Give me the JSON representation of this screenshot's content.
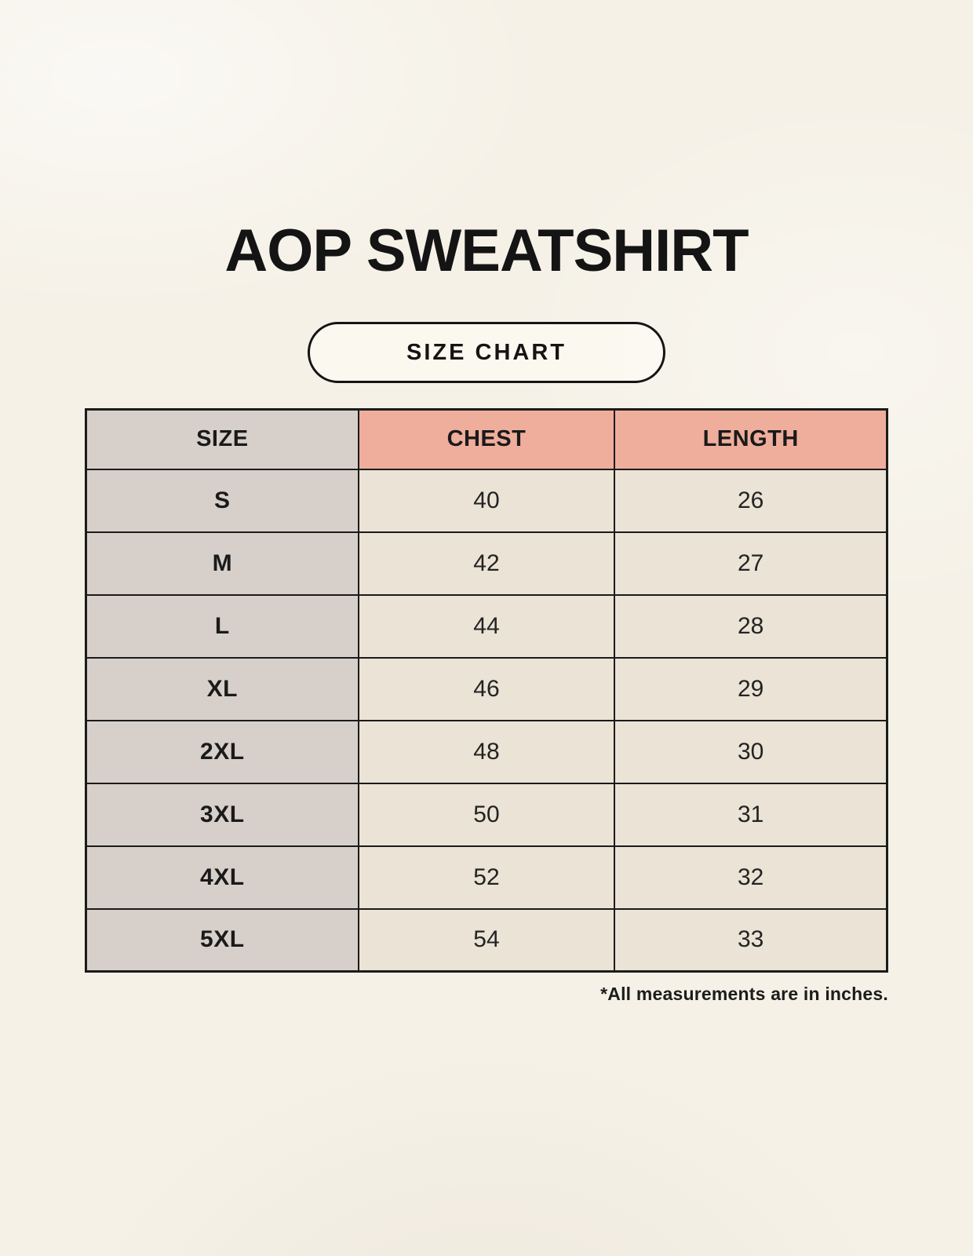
{
  "header": {
    "title": "AOP SWEATSHIRT",
    "badge_label": "SIZE CHART"
  },
  "chart_data": {
    "type": "table",
    "title": "AOP SWEATSHIRT",
    "subtitle": "SIZE CHART",
    "columns": [
      "SIZE",
      "CHEST",
      "LENGTH"
    ],
    "rows": [
      [
        "S",
        40,
        26
      ],
      [
        "M",
        42,
        27
      ],
      [
        "L",
        44,
        28
      ],
      [
        "XL",
        46,
        29
      ],
      [
        "2XL",
        48,
        30
      ],
      [
        "3XL",
        50,
        31
      ],
      [
        "4XL",
        52,
        32
      ],
      [
        "5XL",
        54,
        33
      ]
    ],
    "note": "*All measurements are in inches.",
    "units": "inches"
  },
  "colors": {
    "background": "#f5f1e7",
    "size_column": "#d7d0ca",
    "header_accent": "#efae9c",
    "value_cell": "#eae3d6",
    "border": "#1b1b1b",
    "text": "#141414"
  }
}
